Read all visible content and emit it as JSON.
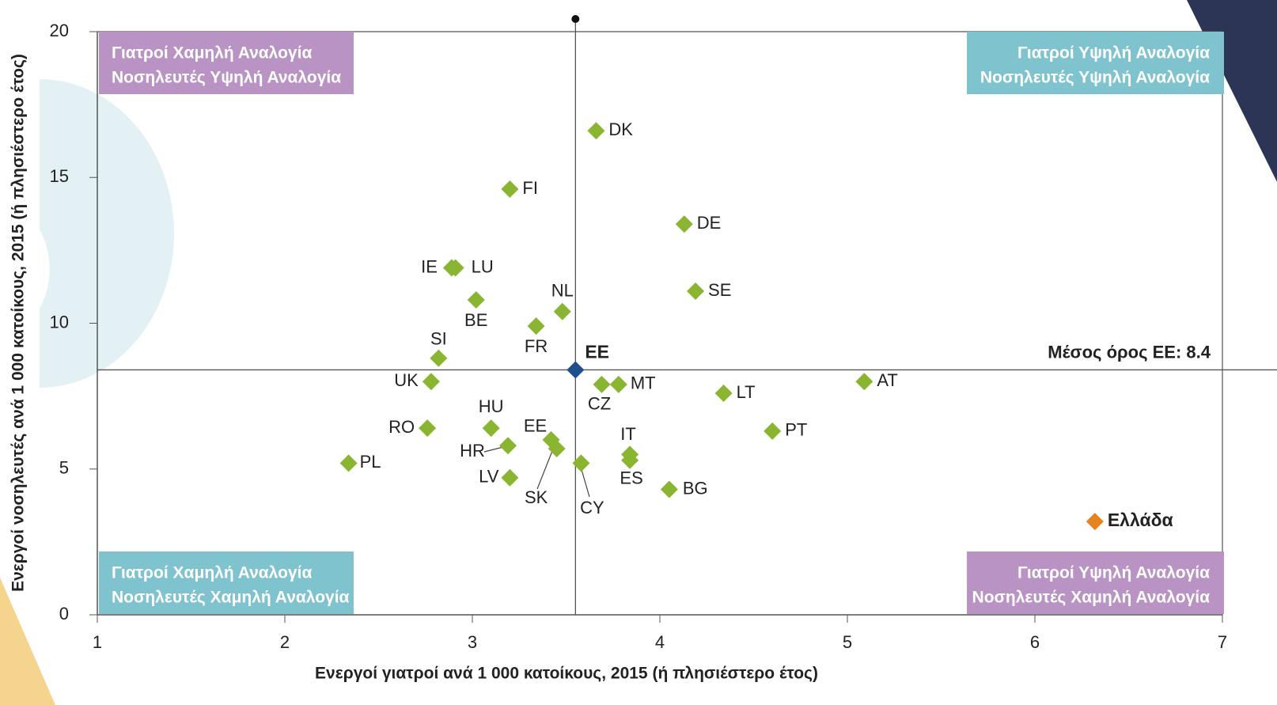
{
  "chart_data": {
    "type": "scatter",
    "x_label": "Ενεργοί γιατροί ανά 1 000 κατοίκους, 2015 (ή πλησιέστερο έτος)",
    "y_label": "Ενεργοί νοσηλευτές ανά 1 000 κατοίκους, 2015 (ή πλησιέστερο έτος)",
    "xlim": [
      1,
      7
    ],
    "xticks": [
      1,
      2,
      3,
      4,
      5,
      6,
      7
    ],
    "ylim": [
      0,
      20
    ],
    "yticks": [
      0,
      5,
      10,
      15,
      20
    ],
    "series": [
      {
        "color": "#8ab531",
        "labels": [
          "DK",
          "FI",
          "DE",
          "IE",
          "LU",
          "BE",
          "NL",
          "SE",
          "FR",
          "SI",
          "UK",
          "CZ",
          "MT",
          "LT",
          "AT",
          "RO",
          "HU",
          "PT",
          "EE",
          "SK",
          "HR",
          "IT",
          "ES",
          "CY",
          "PL",
          "LV",
          "BG"
        ],
        "x": [
          3.66,
          3.2,
          4.13,
          2.89,
          2.91,
          3.02,
          3.48,
          4.19,
          3.34,
          2.82,
          2.78,
          3.69,
          3.78,
          4.34,
          5.09,
          2.76,
          3.1,
          4.6,
          3.42,
          3.45,
          3.19,
          3.84,
          3.84,
          3.58,
          2.34,
          3.2,
          4.05
        ],
        "y": [
          16.6,
          14.6,
          13.4,
          11.9,
          11.9,
          10.8,
          10.4,
          11.1,
          9.9,
          8.8,
          8.0,
          7.9,
          7.9,
          7.6,
          8.0,
          6.4,
          6.4,
          6.3,
          6.0,
          5.7,
          5.8,
          5.5,
          5.3,
          5.2,
          5.2,
          4.7,
          4.3
        ]
      },
      {
        "name": "ΕΕ",
        "color": "#1f4e8c",
        "x": [
          3.55
        ],
        "y": [
          8.4
        ]
      },
      {
        "name": "Ελλάδα",
        "color": "#e8821e",
        "x": [
          6.32
        ],
        "y": [
          3.2
        ]
      }
    ],
    "mean_line": {
      "label": "Μέσος όρος ΕΕ: 8.4",
      "value": 8.4
    },
    "quadrants": [
      {
        "lines": [
          "Γιατροί Χαμηλή Αναλογία",
          "Νοσηλευτές Υψηλή Αναλογία"
        ],
        "color": "#b893c4"
      },
      {
        "lines": [
          "Γιατροί Υψηλή Αναλογία",
          "Νοσηλευτές Υψηλή Αναλογία"
        ],
        "color": "#7fc3ce"
      },
      {
        "lines": [
          "Γιατροί Χαμηλή Αναλογία",
          "Νοσηλευτές Χαμηλή Αναλογία"
        ],
        "color": "#7fc3ce"
      },
      {
        "lines": [
          "Γιατροί Υψηλή Αναλογία",
          "Νοσηλευτές Χαμηλή Αναλογία"
        ],
        "color": "#b893c4"
      }
    ]
  }
}
